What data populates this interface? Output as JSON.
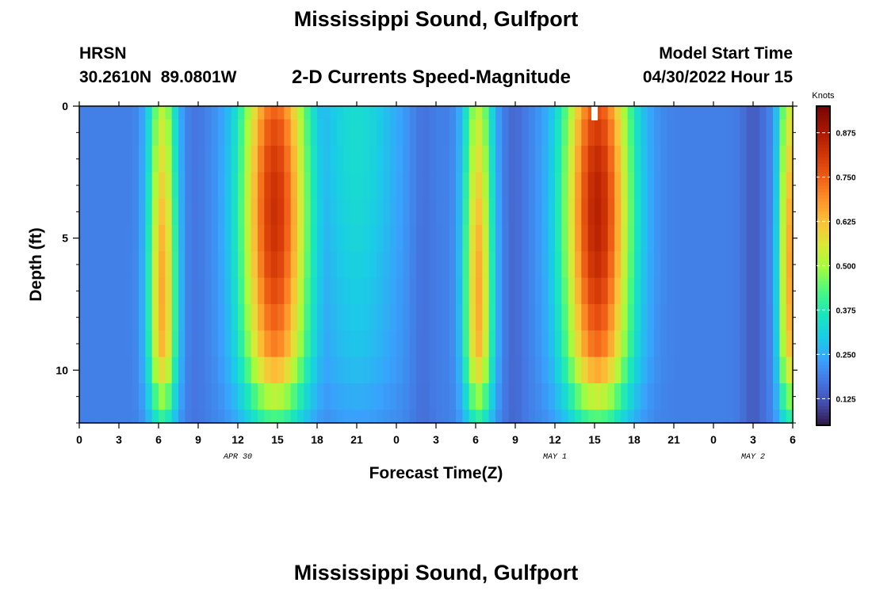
{
  "header": {
    "title": "Mississippi Sound, Gulfport",
    "station_code": "HRSN",
    "station_coords": "30.2610N  89.0801W",
    "subtitle": "2-D Currents Speed-Magnitude",
    "model_start_label": "Model Start Time",
    "model_start_value": "04/30/2022 Hour 15"
  },
  "footer": {
    "title_repeat": "Mississippi Sound, Gulfport"
  },
  "chart_data": {
    "type": "heatmap",
    "xlabel": "Forecast Time(Z)",
    "ylabel": "Depth (ft)",
    "x_range_hours": [
      0,
      54
    ],
    "y_range_ft": [
      0,
      12
    ],
    "y_inverted": true,
    "x_tick_labels": [
      "0",
      "3",
      "6",
      "9",
      "12",
      "15",
      "18",
      "21",
      "0",
      "3",
      "6",
      "9",
      "12",
      "15",
      "18",
      "21",
      "0",
      "3",
      "6"
    ],
    "y_tick_labels": [
      "0",
      "5",
      "10"
    ],
    "y_tick_values": [
      0,
      5,
      10
    ],
    "date_labels": [
      {
        "text": "APR 30",
        "hour": 12
      },
      {
        "text": "MAY 1",
        "hour": 36
      },
      {
        "text": "MAY 2",
        "hour": 51
      }
    ],
    "model_start_marker_hour": 39,
    "colorbar": {
      "title": "Knots",
      "range": [
        0.05,
        0.95
      ],
      "tick_labels": [
        "0.875",
        "0.750",
        "0.625",
        "0.500",
        "0.375",
        "0.250",
        "0.125"
      ],
      "tick_values": [
        0.875,
        0.75,
        0.625,
        0.5,
        0.375,
        0.25,
        0.125
      ]
    },
    "colormap": "turbo",
    "depth_levels_ft": [
      0,
      1,
      2,
      3,
      4,
      5,
      6,
      7,
      8,
      9,
      10,
      11,
      12
    ],
    "speed_peaks": [
      {
        "hour": 6.3,
        "half_width_hours": 1.1,
        "peak_knots": 0.66,
        "max_depth_ft": 7
      },
      {
        "hour": 14.8,
        "half_width_hours": 2.6,
        "peak_knots": 0.83,
        "max_depth_ft": 4
      },
      {
        "hour": 21.0,
        "half_width_hours": 3.2,
        "peak_knots": 0.34,
        "max_depth_ft": 1
      },
      {
        "hour": 30.2,
        "half_width_hours": 1.1,
        "peak_knots": 0.66,
        "max_depth_ft": 7
      },
      {
        "hour": 39.2,
        "half_width_hours": 2.6,
        "peak_knots": 0.86,
        "max_depth_ft": 4
      },
      {
        "hour": 53.7,
        "half_width_hours": 0.8,
        "peak_knots": 0.66,
        "max_depth_ft": 6
      }
    ],
    "slack_minima": [
      {
        "hour": 8.7,
        "knots": 0.15
      },
      {
        "hour": 26.0,
        "knots": 0.12
      },
      {
        "hour": 32.9,
        "knots": 0.1
      },
      {
        "hour": 51.0,
        "knots": 0.05
      }
    ],
    "background_knots": 0.19
  }
}
